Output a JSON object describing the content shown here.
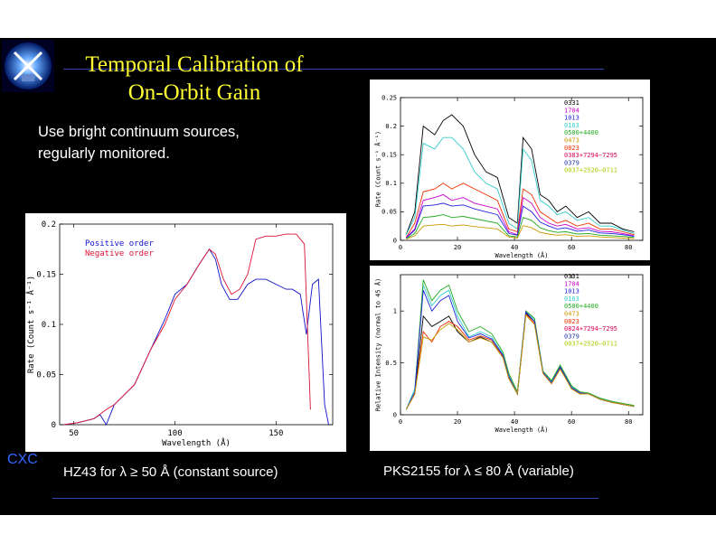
{
  "slide": {
    "title_line1": "Temporal Calibration of",
    "title_line2": "On-Orbit Gain",
    "bullet_line1": "Use bright continuum sources,",
    "bullet_line2": "regularly monitored.",
    "caption_left": "HZ43 for  λ ≥  50 Å (constant source)",
    "caption_right": "PKS2155 for  λ ≤ 80 Å (variable)",
    "footer": "CXC",
    "logo_icon": "chandra-logo-icon",
    "colors": {
      "background": "#000000",
      "title": "#ffff33",
      "footer": "#3366ff",
      "rule": "#3344aa"
    }
  },
  "chart_data": [
    {
      "type": "line",
      "xlabel": "Wavelength (Å)",
      "ylabel": "Rate (Count s⁻¹ Å⁻¹)",
      "xlim": [
        43,
        178
      ],
      "ylim": [
        0,
        0.2
      ],
      "xticks": [
        "50",
        "100",
        "150"
      ],
      "yticks": [
        "0",
        "0.05",
        "0.1",
        "0.15",
        "0.2"
      ],
      "legend": [
        "Positive order",
        "Negative order"
      ],
      "series": [
        {
          "name": "Positive order",
          "color": "#1111cc",
          "x": [
            45,
            52,
            60,
            63,
            66,
            70,
            80,
            88,
            95,
            100,
            106,
            112,
            117,
            120,
            123,
            127,
            131,
            136,
            140,
            145,
            150,
            155,
            158,
            162,
            165,
            168,
            171,
            174,
            176
          ],
          "y": [
            0,
            0.002,
            0.006,
            0.01,
            0,
            0.02,
            0.04,
            0.075,
            0.105,
            0.13,
            0.14,
            0.16,
            0.175,
            0.165,
            0.14,
            0.125,
            0.125,
            0.14,
            0.145,
            0.145,
            0.14,
            0.135,
            0.135,
            0.13,
            0.09,
            0.14,
            0.145,
            0.02,
            0
          ]
        },
        {
          "name": "Negative order",
          "color": "#dd1133",
          "x": [
            45,
            52,
            60,
            66,
            70,
            80,
            88,
            95,
            100,
            106,
            112,
            117,
            120,
            124,
            128,
            132,
            136,
            140,
            145,
            150,
            155,
            160,
            164,
            167
          ],
          "y": [
            0,
            0.002,
            0.006,
            0.015,
            0.02,
            0.04,
            0.075,
            0.1,
            0.125,
            0.14,
            0.16,
            0.175,
            0.17,
            0.145,
            0.13,
            0.135,
            0.15,
            0.185,
            0.188,
            0.188,
            0.19,
            0.19,
            0.18,
            0.015
          ]
        }
      ]
    },
    {
      "type": "line",
      "xlabel": "Wavelength (Å)",
      "ylabel": "Rate (Count s⁻¹ Å⁻¹)",
      "xlim": [
        0,
        85
      ],
      "ylim": [
        0,
        0.25
      ],
      "xticks": [
        "0",
        "20",
        "40",
        "60",
        "80"
      ],
      "yticks": [
        "0",
        "0.05",
        "0.1",
        "0.15",
        "0.2",
        "0.25"
      ],
      "legend": [
        "0331",
        "1704",
        "1013",
        "0163",
        "0500+4400",
        "0473",
        "0823",
        "0383+7294−7295",
        "0379",
        "0037+2520−0711"
      ],
      "legend_colors": [
        "#000000",
        "#cc00cc",
        "#2222dd",
        "#33cccc",
        "#22aa22",
        "#cc9900",
        "#ee3300",
        "#dd0055",
        "#2233aa",
        "#aacc00"
      ],
      "series": [
        {
          "name": "0331",
          "color": "#000000",
          "x": [
            2,
            5,
            8,
            12,
            15,
            18,
            22,
            26,
            30,
            34,
            38,
            41,
            43,
            46,
            49,
            52,
            55,
            58,
            62,
            66,
            70,
            74,
            78,
            82
          ],
          "y": [
            0.01,
            0.05,
            0.2,
            0.185,
            0.21,
            0.22,
            0.2,
            0.15,
            0.12,
            0.11,
            0.04,
            0.03,
            0.18,
            0.16,
            0.08,
            0.07,
            0.05,
            0.06,
            0.04,
            0.05,
            0.03,
            0.03,
            0.02,
            0.015
          ]
        },
        {
          "name": "0163",
          "color": "#33cccc",
          "x": [
            2,
            5,
            8,
            12,
            15,
            18,
            22,
            26,
            30,
            34,
            38,
            41,
            43,
            46,
            49,
            52,
            55,
            58,
            62,
            66,
            70,
            74,
            78,
            82
          ],
          "y": [
            0.01,
            0.04,
            0.17,
            0.16,
            0.18,
            0.18,
            0.16,
            0.12,
            0.1,
            0.09,
            0.03,
            0.02,
            0.16,
            0.14,
            0.07,
            0.06,
            0.045,
            0.05,
            0.035,
            0.04,
            0.025,
            0.025,
            0.018,
            0.012
          ]
        },
        {
          "name": "0823",
          "color": "#ee3300",
          "x": [
            2,
            5,
            8,
            12,
            15,
            18,
            22,
            26,
            30,
            34,
            38,
            41,
            43,
            46,
            49,
            52,
            55,
            58,
            62,
            66,
            70,
            74,
            78,
            82
          ],
          "y": [
            0.005,
            0.03,
            0.085,
            0.09,
            0.1,
            0.09,
            0.1,
            0.09,
            0.08,
            0.07,
            0.02,
            0.015,
            0.09,
            0.08,
            0.05,
            0.04,
            0.03,
            0.035,
            0.025,
            0.03,
            0.02,
            0.02,
            0.015,
            0.01
          ]
        },
        {
          "name": "1704",
          "color": "#cc00cc",
          "x": [
            2,
            5,
            8,
            12,
            15,
            18,
            22,
            26,
            30,
            34,
            38,
            41,
            43,
            46,
            49,
            52,
            55,
            58,
            62,
            66,
            70,
            74,
            78,
            82
          ],
          "y": [
            0.005,
            0.02,
            0.07,
            0.075,
            0.08,
            0.07,
            0.075,
            0.065,
            0.06,
            0.055,
            0.015,
            0.01,
            0.075,
            0.065,
            0.04,
            0.03,
            0.025,
            0.028,
            0.02,
            0.022,
            0.016,
            0.015,
            0.012,
            0.008
          ]
        },
        {
          "name": "1013",
          "color": "#2222dd",
          "x": [
            2,
            5,
            8,
            12,
            15,
            18,
            22,
            26,
            30,
            34,
            38,
            41,
            43,
            46,
            49,
            52,
            55,
            58,
            62,
            66,
            70,
            74,
            78,
            82
          ],
          "y": [
            0.004,
            0.018,
            0.06,
            0.062,
            0.065,
            0.06,
            0.062,
            0.055,
            0.05,
            0.045,
            0.012,
            0.009,
            0.06,
            0.05,
            0.032,
            0.025,
            0.02,
            0.022,
            0.016,
            0.018,
            0.013,
            0.012,
            0.01,
            0.007
          ]
        },
        {
          "name": "0500+4400",
          "color": "#22aa22",
          "x": [
            2,
            5,
            8,
            12,
            15,
            18,
            22,
            26,
            30,
            34,
            38,
            41,
            43,
            46,
            49,
            52,
            55,
            58,
            62,
            66,
            70,
            74,
            78,
            82
          ],
          "y": [
            0.003,
            0.012,
            0.04,
            0.042,
            0.045,
            0.04,
            0.042,
            0.038,
            0.034,
            0.03,
            0.008,
            0.006,
            0.04,
            0.035,
            0.022,
            0.017,
            0.014,
            0.015,
            0.011,
            0.012,
            0.009,
            0.008,
            0.007,
            0.005
          ]
        },
        {
          "name": "0473",
          "color": "#cc9900",
          "x": [
            2,
            5,
            8,
            12,
            15,
            18,
            22,
            26,
            30,
            34,
            38,
            41,
            43,
            46,
            49,
            52,
            55,
            58,
            62,
            66,
            70,
            74,
            78,
            82
          ],
          "y": [
            0.002,
            0.008,
            0.025,
            0.027,
            0.028,
            0.025,
            0.027,
            0.024,
            0.022,
            0.02,
            0.006,
            0.004,
            0.026,
            0.022,
            0.014,
            0.011,
            0.009,
            0.01,
            0.007,
            0.008,
            0.006,
            0.005,
            0.004,
            0.003
          ]
        }
      ]
    },
    {
      "type": "line",
      "xlabel": "Wavelength (Å)",
      "ylabel": "Relative Intensity (normal to 45 Å)",
      "xlim": [
        0,
        85
      ],
      "ylim": [
        0,
        1.35
      ],
      "xticks": [
        "0",
        "20",
        "40",
        "60",
        "80"
      ],
      "yticks": [
        "0",
        "0.5",
        "1"
      ],
      "legend": [
        "0331",
        "1704",
        "1013",
        "0163",
        "0500+4400",
        "0473",
        "0823",
        "0824+7294−7295",
        "0379",
        "0037+2520−0711"
      ],
      "legend_colors": [
        "#000000",
        "#cc00cc",
        "#2222dd",
        "#33cccc",
        "#22aa22",
        "#cc9900",
        "#ee3300",
        "#dd0055",
        "#2233aa",
        "#aacc00"
      ],
      "series": [
        {
          "name": "0331",
          "color": "#000000",
          "x": [
            2,
            5,
            8,
            11,
            14,
            17,
            20,
            24,
            28,
            32,
            36,
            38,
            41,
            44,
            47,
            50,
            53,
            56,
            60,
            63,
            66,
            70,
            74,
            78,
            82
          ],
          "y": [
            0.05,
            0.2,
            0.95,
            0.85,
            0.9,
            0.95,
            0.8,
            0.7,
            0.75,
            0.7,
            0.55,
            0.35,
            0.2,
            0.98,
            0.9,
            0.4,
            0.3,
            0.45,
            0.25,
            0.2,
            0.2,
            0.15,
            0.12,
            0.1,
            0.08
          ]
        },
        {
          "name": "0163",
          "color": "#33cccc",
          "x": [
            2,
            5,
            8,
            11,
            14,
            17,
            20,
            24,
            28,
            32,
            36,
            38,
            41,
            44,
            47,
            50,
            53,
            56,
            60,
            63,
            66,
            70,
            74,
            78,
            82
          ],
          "y": [
            0.05,
            0.25,
            1.25,
            1.05,
            1.15,
            1.2,
            0.95,
            0.75,
            0.8,
            0.75,
            0.58,
            0.38,
            0.2,
            1.0,
            0.92,
            0.42,
            0.32,
            0.47,
            0.27,
            0.22,
            0.21,
            0.16,
            0.13,
            0.1,
            0.08
          ]
        },
        {
          "name": "0823",
          "color": "#ee3300",
          "x": [
            2,
            5,
            8,
            11,
            14,
            17,
            20,
            24,
            28,
            32,
            36,
            38,
            41,
            44,
            47,
            50,
            53,
            56,
            60,
            63,
            66,
            70,
            74,
            78,
            82
          ],
          "y": [
            0.05,
            0.2,
            0.8,
            0.7,
            0.85,
            0.9,
            0.85,
            0.72,
            0.76,
            0.72,
            0.56,
            0.36,
            0.2,
            0.97,
            0.88,
            0.4,
            0.3,
            0.44,
            0.26,
            0.21,
            0.2,
            0.15,
            0.12,
            0.1,
            0.08
          ]
        },
        {
          "name": "0500+4400",
          "color": "#22aa22",
          "x": [
            2,
            5,
            8,
            11,
            14,
            17,
            20,
            24,
            28,
            32,
            36,
            38,
            41,
            44,
            47,
            50,
            53,
            56,
            60,
            63,
            66,
            70,
            74,
            78,
            82
          ],
          "y": [
            0.05,
            0.22,
            1.3,
            1.1,
            1.2,
            1.25,
            1.0,
            0.8,
            0.85,
            0.78,
            0.6,
            0.4,
            0.22,
            1.0,
            0.93,
            0.42,
            0.33,
            0.48,
            0.28,
            0.22,
            0.21,
            0.16,
            0.13,
            0.11,
            0.09
          ]
        },
        {
          "name": "1013",
          "color": "#2222dd",
          "x": [
            2,
            5,
            8,
            11,
            14,
            17,
            20,
            24,
            28,
            32,
            36,
            38,
            41,
            44,
            47,
            50,
            53,
            56,
            60,
            63,
            66,
            70,
            74,
            78,
            82
          ],
          "y": [
            0.05,
            0.22,
            1.2,
            1.0,
            1.1,
            1.15,
            0.9,
            0.74,
            0.78,
            0.73,
            0.57,
            0.37,
            0.2,
            0.99,
            0.9,
            0.41,
            0.31,
            0.46,
            0.26,
            0.21,
            0.2,
            0.15,
            0.12,
            0.1,
            0.08
          ]
        },
        {
          "name": "0473",
          "color": "#cc9900",
          "x": [
            2,
            5,
            8,
            11,
            14,
            17,
            20,
            24,
            28,
            32,
            36,
            38,
            41,
            44,
            47,
            50,
            53,
            56,
            60,
            63,
            66,
            70,
            74,
            78,
            82
          ],
          "y": [
            0.05,
            0.2,
            0.75,
            0.72,
            0.82,
            0.88,
            0.82,
            0.7,
            0.74,
            0.7,
            0.55,
            0.35,
            0.2,
            0.96,
            0.87,
            0.4,
            0.3,
            0.44,
            0.25,
            0.2,
            0.2,
            0.15,
            0.12,
            0.1,
            0.08
          ]
        }
      ]
    }
  ]
}
